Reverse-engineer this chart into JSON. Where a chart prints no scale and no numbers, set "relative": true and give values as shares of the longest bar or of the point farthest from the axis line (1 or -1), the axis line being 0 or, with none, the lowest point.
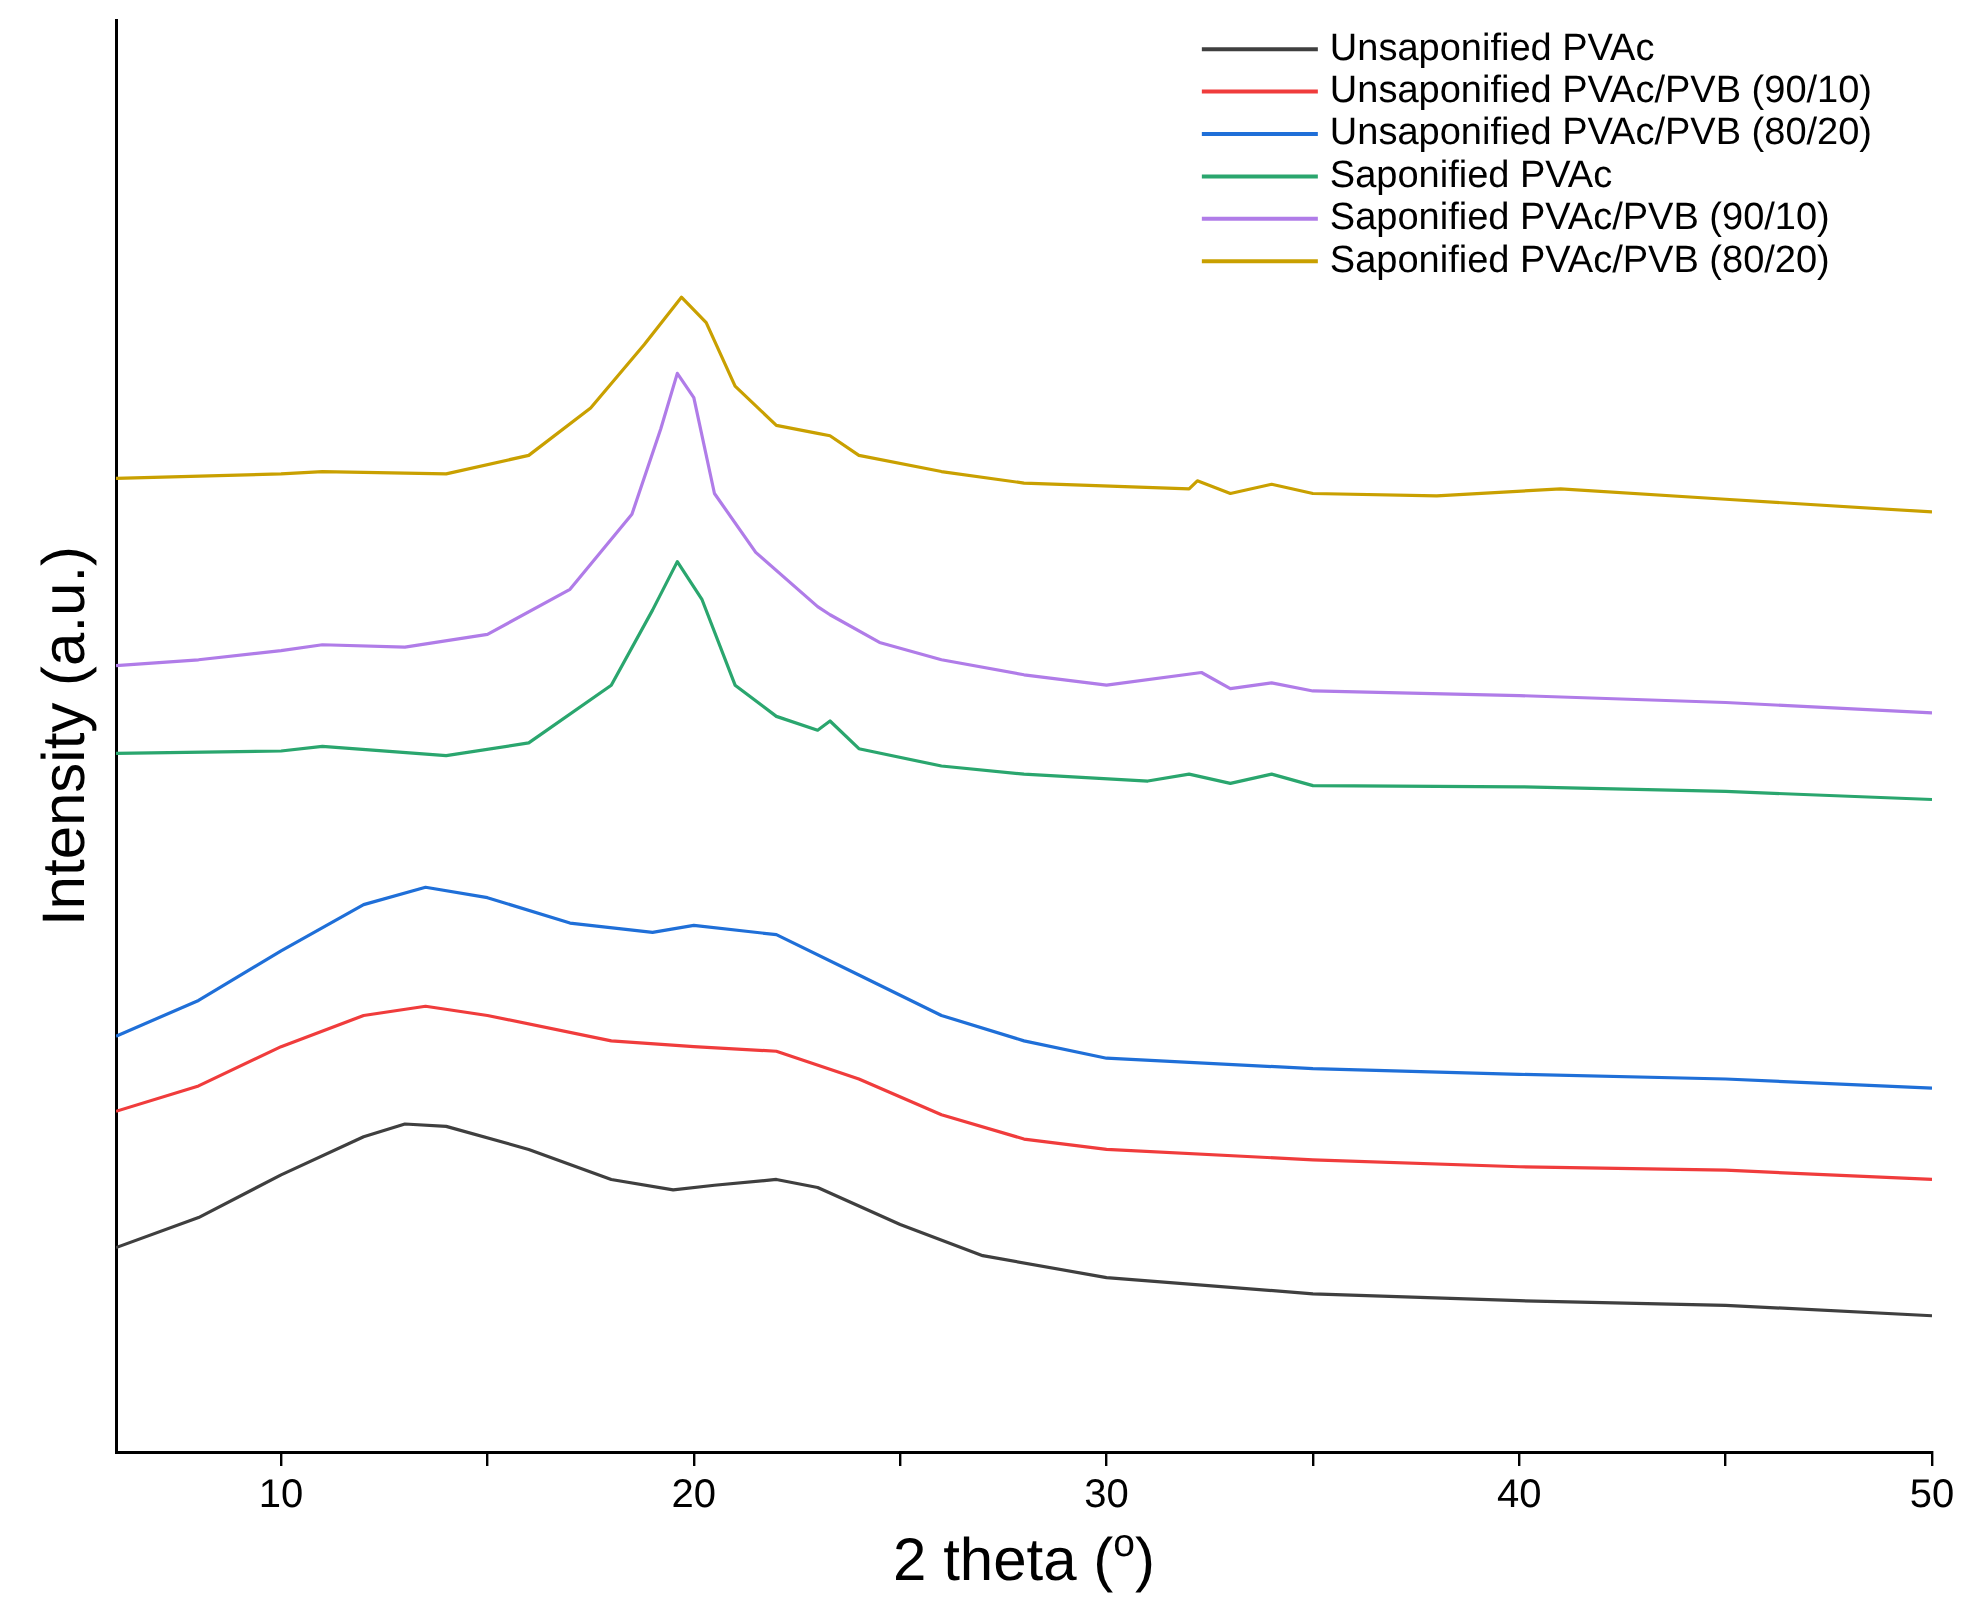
{
  "chart_data": {
    "type": "line",
    "relative": true,
    "xlabel": "2 theta ($^{o}$)",
    "ylabel": "Intensity (a.u.)",
    "xlim": [
      6,
      50
    ],
    "xticks": [
      10,
      {
        "value": 15,
        "label": null
      },
      20,
      {
        "value": 25,
        "label": null
      },
      30,
      {
        "value": 35,
        "label": null
      },
      40,
      {
        "value": 45,
        "label": null
      },
      50
    ],
    "legend": "top right",
    "grid": false,
    "marker": "none",
    "line_style": "solid",
    "series": [
      {
        "name": "Unsaponified PVAc",
        "color": "#3f3f3f",
        "x": [
          6,
          8,
          10,
          12,
          13,
          14,
          16,
          18,
          19.5,
          20.5,
          22,
          23,
          25,
          27,
          30,
          35,
          40,
          45,
          50
        ],
        "values": [
          0.177,
          0.203,
          0.24,
          0.273,
          0.284,
          0.282,
          0.262,
          0.236,
          0.227,
          0.231,
          0.236,
          0.229,
          0.197,
          0.17,
          0.151,
          0.137,
          0.131,
          0.127,
          0.118
        ]
      },
      {
        "name": "Unsaponified PVAc/PVB (90/10)",
        "color": "#f03c3c",
        "x": [
          6,
          8,
          10,
          12,
          13.5,
          15,
          18,
          20,
          22,
          24,
          26,
          28,
          30,
          35,
          40,
          45,
          50
        ],
        "values": [
          0.295,
          0.317,
          0.351,
          0.378,
          0.386,
          0.378,
          0.356,
          0.351,
          0.347,
          0.323,
          0.292,
          0.271,
          0.262,
          0.253,
          0.247,
          0.244,
          0.236
        ]
      },
      {
        "name": "Unsaponified PVAc/PVB (80/20)",
        "color": "#1f6fd8",
        "x": [
          6,
          8,
          10,
          12,
          13.5,
          15,
          17,
          19,
          20,
          22,
          24,
          26,
          28,
          30,
          35,
          40,
          45,
          50
        ],
        "values": [
          0.36,
          0.391,
          0.434,
          0.474,
          0.489,
          0.48,
          0.458,
          0.45,
          0.456,
          0.448,
          0.413,
          0.378,
          0.356,
          0.341,
          0.332,
          0.327,
          0.323,
          0.315
        ]
      },
      {
        "name": "Saponified PVAc",
        "color": "#2aa66e",
        "x": [
          6,
          10,
          11,
          14,
          16,
          18,
          19,
          19.6,
          20.2,
          21,
          22,
          23,
          23.3,
          24,
          26,
          28,
          31,
          32,
          33,
          34,
          35,
          40,
          45,
          50
        ],
        "values": [
          0.605,
          0.607,
          0.611,
          0.603,
          0.614,
          0.664,
          0.729,
          0.771,
          0.738,
          0.664,
          0.637,
          0.625,
          0.633,
          0.609,
          0.594,
          0.587,
          0.581,
          0.587,
          0.579,
          0.587,
          0.577,
          0.576,
          0.572,
          0.565
        ]
      },
      {
        "name": "Saponified PVAc/PVB (90/10)",
        "color": "#b07ce8",
        "x": [
          6,
          8,
          10,
          11,
          13,
          15,
          17,
          18.5,
          19.2,
          19.6,
          20,
          20.5,
          21.5,
          23,
          23.3,
          24.5,
          26,
          28,
          30,
          32.3,
          33,
          34,
          35,
          40,
          45,
          50
        ],
        "values": [
          0.681,
          0.686,
          0.694,
          0.699,
          0.697,
          0.708,
          0.747,
          0.812,
          0.886,
          0.934,
          0.913,
          0.83,
          0.779,
          0.732,
          0.725,
          0.701,
          0.686,
          0.673,
          0.664,
          0.675,
          0.661,
          0.666,
          0.659,
          0.655,
          0.649,
          0.64
        ]
      },
      {
        "name": "Saponified PVAc/PVB (80/20)",
        "color": "#c9a000",
        "x": [
          6,
          10,
          11,
          14,
          16,
          17.5,
          18.8,
          19.7,
          20.3,
          21,
          22,
          23,
          23.3,
          24,
          26,
          28,
          32,
          32.2,
          33,
          34,
          35,
          38,
          41,
          45,
          50
        ],
        "values": [
          0.843,
          0.847,
          0.849,
          0.847,
          0.863,
          0.904,
          0.959,
          1,
          0.978,
          0.923,
          0.889,
          0.882,
          0.88,
          0.863,
          0.849,
          0.839,
          0.834,
          0.841,
          0.83,
          0.838,
          0.83,
          0.828,
          0.834,
          0.825,
          0.814
        ]
      }
    ]
  }
}
